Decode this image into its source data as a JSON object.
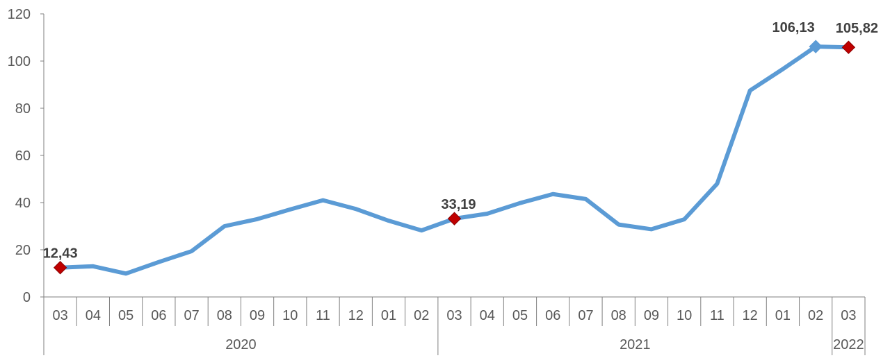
{
  "chart_data": {
    "type": "line",
    "title": "",
    "xlabel": "",
    "ylabel": "",
    "ylim": [
      0,
      120
    ],
    "yticks": [
      0,
      20,
      40,
      60,
      80,
      100,
      120
    ],
    "grid": false,
    "legend": "none",
    "categories": [
      "03",
      "04",
      "05",
      "06",
      "07",
      "08",
      "09",
      "10",
      "11",
      "12",
      "01",
      "02",
      "03",
      "04",
      "05",
      "06",
      "07",
      "08",
      "09",
      "10",
      "11",
      "12",
      "01",
      "02",
      "03"
    ],
    "years": [
      {
        "label": "2020",
        "start": 0,
        "end": 11
      },
      {
        "label": "2021",
        "start": 12,
        "end": 23
      },
      {
        "label": "2022",
        "start": 24,
        "end": 24
      }
    ],
    "series": [
      {
        "values": [
          12.43,
          13.0,
          9.9,
          14.8,
          19.4,
          30.0,
          33.0,
          37.1,
          41.0,
          37.3,
          32.3,
          28.2,
          33.19,
          35.3,
          39.8,
          43.6,
          41.5,
          30.7,
          28.7,
          32.9,
          48.0,
          87.5,
          96.6,
          106.13,
          105.82
        ],
        "color": "#5B9BD5"
      }
    ],
    "highlighted": [
      {
        "index": 0,
        "label": "12,43",
        "marker_color": "#C00000"
      },
      {
        "index": 12,
        "label": "33,19",
        "marker_color": "#C00000"
      },
      {
        "index": 23,
        "label": "106,13",
        "marker_color": "#5B9BD5"
      },
      {
        "index": 24,
        "label": "105,82",
        "marker_color": "#C00000"
      }
    ]
  }
}
